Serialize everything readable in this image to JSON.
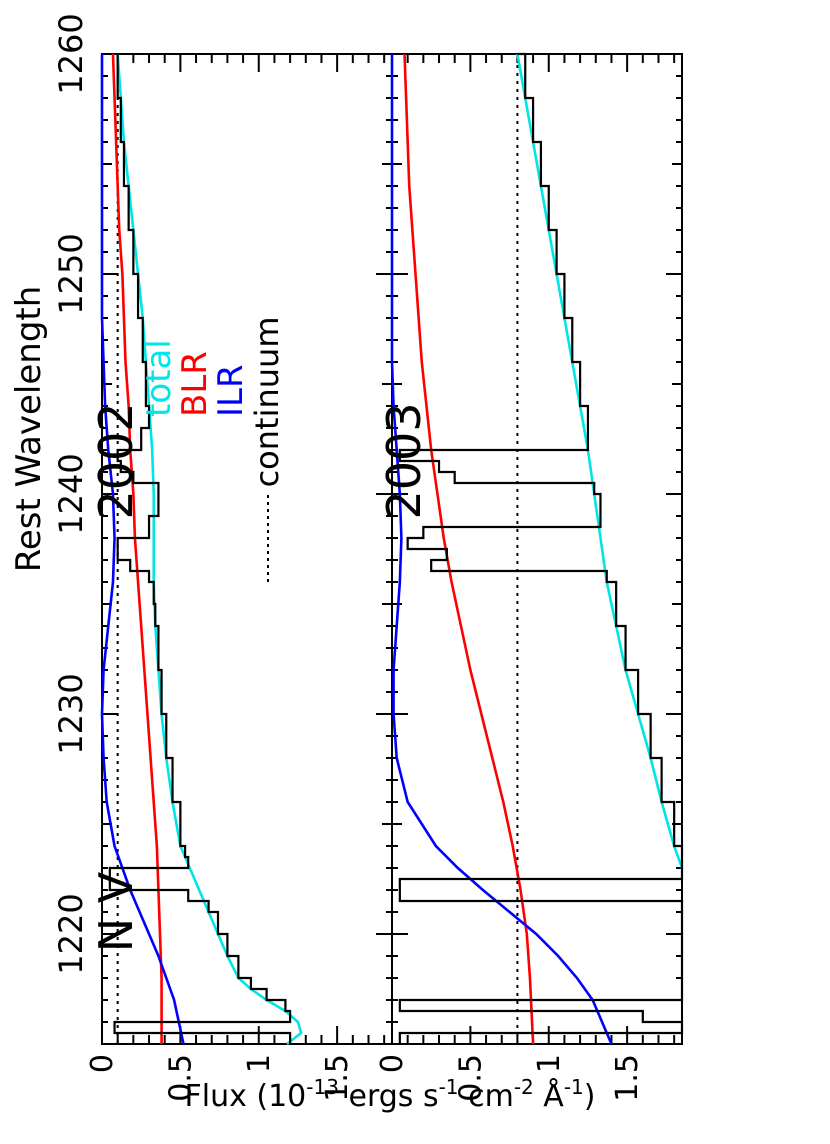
{
  "chart_data": {
    "type": "line",
    "orientation": "rotated-90",
    "xlabel": "Rest Wavelength",
    "ylabel": "Flux (10-13 ergs s-1 cm-2 Å-1)",
    "ylabel_parts": {
      "pre": "Flux (10",
      "exp1": "-13",
      "mid": " ergs s",
      "exp2": "-1",
      "mid2": " cm",
      "exp3": "-2",
      "mid3": " Å",
      "exp4": "-1",
      "post": ")"
    },
    "xlim": [
      1215,
      1260
    ],
    "x_ticks": [
      "1220",
      "1230",
      "1240",
      "1250",
      "1260"
    ],
    "panels": [
      {
        "id": "top",
        "ylim": [
          0,
          1.85
        ],
        "y_ticks": [
          "0",
          "0.5",
          "1",
          "1.5"
        ],
        "annotations": [
          "N V",
          "2002"
        ],
        "continuum_level": 0.1,
        "series": [
          {
            "name": "total",
            "color": "#00e5e5",
            "x": [
              1215,
              1215.5,
              1216,
              1216.5,
              1217,
              1217.5,
              1218,
              1219,
              1220,
              1221,
              1222,
              1223,
              1224,
              1226,
              1228,
              1230,
              1232,
              1234,
              1236,
              1238,
              1240,
              1242,
              1244,
              1246,
              1248,
              1250,
              1252,
              1254,
              1256,
              1258,
              1260
            ],
            "y": [
              1.18,
              1.27,
              1.25,
              1.17,
              1.05,
              0.95,
              0.87,
              0.8,
              0.74,
              0.68,
              0.62,
              0.56,
              0.5,
              0.45,
              0.41,
              0.38,
              0.36,
              0.34,
              0.33,
              0.33,
              0.33,
              0.32,
              0.3,
              0.28,
              0.26,
              0.23,
              0.2,
              0.17,
              0.14,
              0.12,
              0.1
            ]
          },
          {
            "name": "BLR",
            "color": "#ff0000",
            "x": [
              1215,
              1218,
              1220,
              1222,
              1224,
              1226,
              1228,
              1230,
              1232,
              1234,
              1236,
              1238,
              1240,
              1242,
              1244,
              1246,
              1248,
              1250,
              1252,
              1254,
              1256,
              1258,
              1260
            ],
            "y": [
              0.38,
              0.38,
              0.37,
              0.36,
              0.35,
              0.33,
              0.31,
              0.29,
              0.27,
              0.25,
              0.23,
              0.21,
              0.2,
              0.18,
              0.17,
              0.15,
              0.14,
              0.13,
              0.11,
              0.1,
              0.09,
              0.08,
              0.07
            ]
          },
          {
            "name": "ILR",
            "color": "#0000ff",
            "x": [
              1215,
              1217,
              1218,
              1219,
              1220,
              1221,
              1222,
              1223,
              1224,
              1226,
              1228,
              1230,
              1232,
              1234,
              1236,
              1238,
              1240,
              1242,
              1244,
              1246,
              1248,
              1250,
              1252,
              1254,
              1256,
              1258,
              1260
            ],
            "y": [
              0.52,
              0.46,
              0.41,
              0.36,
              0.3,
              0.24,
              0.18,
              0.13,
              0.08,
              0.03,
              0.01,
              0,
              0.01,
              0.04,
              0.07,
              0.08,
              0.07,
              0.04,
              0.02,
              0.01,
              0,
              0,
              0,
              0,
              0,
              0,
              0
            ]
          },
          {
            "name": "observed",
            "color": "#000000",
            "step": true,
            "x": [
              1215,
              1215.5,
              1216,
              1216.5,
              1217,
              1217.5,
              1218,
              1219,
              1220,
              1221,
              1221.5,
              1222,
              1222.5,
              1223,
              1223.5,
              1224,
              1226,
              1228,
              1230,
              1232,
              1234,
              1235,
              1236,
              1236.5,
              1237,
              1238,
              1239,
              1240,
              1240.5,
              1241,
              1241.5,
              1242,
              1243,
              1244,
              1246,
              1248,
              1250,
              1252,
              1254,
              1256,
              1258,
              1260
            ],
            "y": [
              1.2,
              0.08,
              1.2,
              1.17,
              1.05,
              0.95,
              0.87,
              0.8,
              0.74,
              0.68,
              0.55,
              0.05,
              0.05,
              0.55,
              0.53,
              0.5,
              0.45,
              0.41,
              0.38,
              0.36,
              0.34,
              0.33,
              0.3,
              0.18,
              0.1,
              0.3,
              0.36,
              0.36,
              0.2,
              0.12,
              0.1,
              0.25,
              0.3,
              0.28,
              0.26,
              0.23,
              0.2,
              0.17,
              0.14,
              0.12,
              0.1,
              0.1
            ]
          }
        ]
      },
      {
        "id": "bottom",
        "ylim": [
          0,
          1.85
        ],
        "y_ticks": [
          "0",
          "0.5",
          "1",
          "1.5"
        ],
        "annotations": [
          "2003"
        ],
        "continuum_level": 0.8,
        "series": [
          {
            "name": "total",
            "color": "#00e5e5",
            "x": [
              1223,
              1224,
              1226,
              1228,
              1230,
              1232,
              1234,
              1236,
              1238,
              1240,
              1242,
              1244,
              1246,
              1248,
              1250,
              1252,
              1254,
              1256,
              1258,
              1260
            ],
            "y": [
              1.85,
              1.8,
              1.72,
              1.65,
              1.57,
              1.49,
              1.43,
              1.37,
              1.33,
              1.29,
              1.25,
              1.2,
              1.15,
              1.1,
              1.05,
              1.0,
              0.95,
              0.9,
              0.85,
              0.8
            ]
          },
          {
            "name": "BLR",
            "color": "#ff0000",
            "x": [
              1215,
              1218,
              1220,
              1222,
              1224,
              1226,
              1228,
              1230,
              1232,
              1234,
              1236,
              1238,
              1240,
              1242,
              1244,
              1246,
              1248,
              1250,
              1252,
              1254,
              1256,
              1258,
              1260
            ],
            "y": [
              0.9,
              0.88,
              0.86,
              0.82,
              0.77,
              0.71,
              0.64,
              0.57,
              0.5,
              0.44,
              0.38,
              0.33,
              0.29,
              0.25,
              0.22,
              0.19,
              0.17,
              0.15,
              0.13,
              0.11,
              0.1,
              0.09,
              0.08
            ]
          },
          {
            "name": "ILR",
            "color": "#0000ff",
            "x": [
              1215,
              1217,
              1218,
              1219,
              1220,
              1221,
              1222,
              1223,
              1224,
              1226,
              1228,
              1230,
              1232,
              1234,
              1236,
              1238,
              1240,
              1242,
              1244,
              1246,
              1248,
              1250,
              1252,
              1254,
              1256,
              1258,
              1260
            ],
            "y": [
              1.4,
              1.28,
              1.18,
              1.06,
              0.92,
              0.75,
              0.58,
              0.42,
              0.28,
              0.1,
              0.03,
              0.01,
              0.01,
              0.03,
              0.05,
              0.06,
              0.05,
              0.03,
              0.01,
              0,
              0,
              0,
              0,
              0,
              0,
              0,
              0
            ]
          },
          {
            "name": "observed",
            "color": "#000000",
            "step": true,
            "x": [
              1215,
              1215.5,
              1216,
              1216.5,
              1217,
              1221,
              1221.5,
              1222,
              1222.5,
              1223,
              1224,
              1226,
              1228,
              1230,
              1232,
              1234,
              1236,
              1236.5,
              1237,
              1237.5,
              1238,
              1238.5,
              1240,
              1240.5,
              1241,
              1241.5,
              1242,
              1243,
              1244,
              1246,
              1248,
              1250,
              1252,
              1254,
              1256,
              1258,
              1260
            ],
            "y": [
              0.05,
              1.85,
              1.6,
              0.05,
              1.85,
              1.85,
              0.05,
              0.05,
              1.85,
              1.85,
              1.8,
              1.72,
              1.65,
              1.57,
              1.49,
              1.43,
              1.37,
              0.25,
              0.35,
              0.1,
              0.2,
              1.33,
              1.29,
              0.4,
              0.3,
              0.05,
              1.25,
              1.25,
              1.2,
              1.15,
              1.1,
              1.05,
              1.0,
              0.95,
              0.9,
              0.85,
              0.8
            ]
          }
        ]
      }
    ],
    "legend": [
      {
        "label": "total",
        "color": "#00e5e5"
      },
      {
        "label": "BLR",
        "color": "#ff0000"
      },
      {
        "label": "ILR",
        "color": "#0000ff"
      },
      {
        "label": "continuum",
        "color": "#000000",
        "dotted": true
      }
    ]
  }
}
